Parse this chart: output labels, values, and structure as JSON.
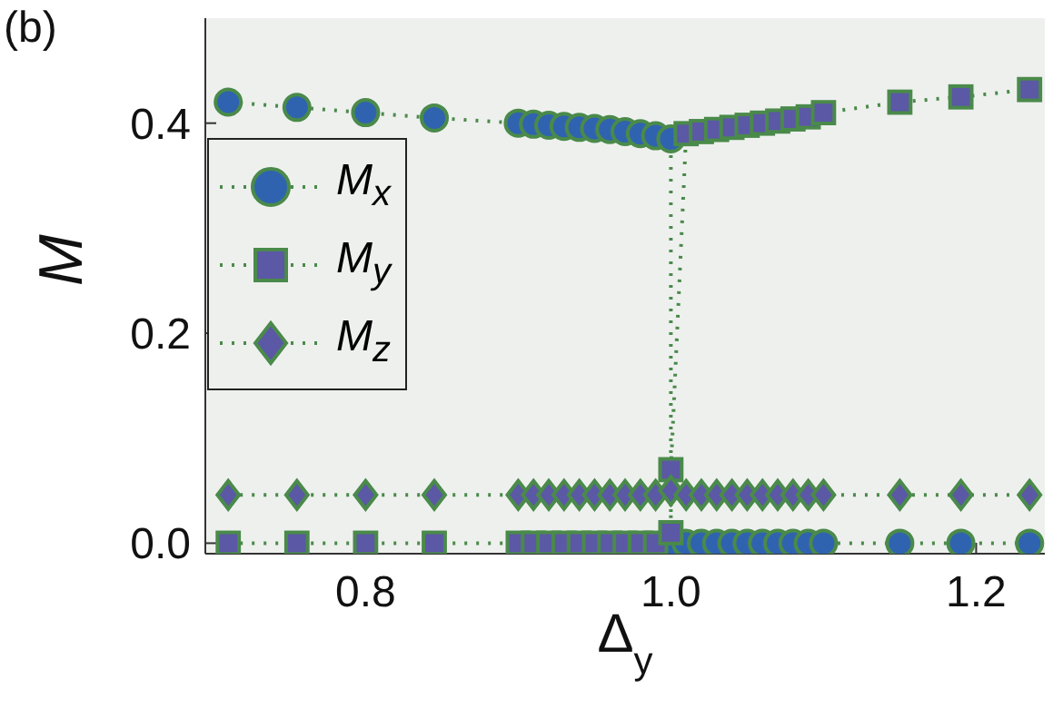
{
  "chart_data": {
    "type": "line",
    "xlabel": "Δ$_{y}$",
    "ylabel": "M",
    "annotations": [
      "(b)"
    ],
    "xlim": [
      0.695,
      1.245
    ],
    "ylim": [
      -0.01,
      0.5
    ],
    "xticks": [
      {
        "value": 0.8,
        "label": "0.8"
      },
      {
        "value": 1.0,
        "label": "1.0"
      },
      {
        "value": 1.2,
        "label": "1.2"
      }
    ],
    "yticks": [
      {
        "value": 0.0,
        "label": "0.0"
      },
      {
        "value": 0.2,
        "label": "0.2"
      },
      {
        "value": 0.4,
        "label": "0.4"
      }
    ],
    "grid": false,
    "legend": "top left",
    "line_style": "dotted",
    "series": [
      {
        "name": "M$_{x}$",
        "color": "#2f63b0",
        "marker": "circle",
        "x": [
          0.71,
          0.755,
          0.8,
          0.845,
          0.9,
          0.91,
          0.92,
          0.93,
          0.94,
          0.95,
          0.96,
          0.97,
          0.98,
          0.99,
          1.0,
          1.0,
          1.01,
          1.02,
          1.03,
          1.04,
          1.05,
          1.06,
          1.07,
          1.08,
          1.09,
          1.1,
          1.15,
          1.19,
          1.235
        ],
        "values": [
          0.42,
          0.415,
          0.41,
          0.405,
          0.4,
          0.399,
          0.398,
          0.397,
          0.396,
          0.395,
          0.394,
          0.392,
          0.39,
          0.388,
          0.385,
          0.0,
          0.0,
          0.0,
          0.0,
          0.0,
          0.0,
          0.0,
          0.0,
          0.0,
          0.0,
          0.0,
          0.0,
          0.0,
          0.0
        ]
      },
      {
        "name": "M$_{y}$",
        "color": "#5b58a6",
        "marker": "square",
        "x": [
          0.71,
          0.755,
          0.8,
          0.845,
          0.9,
          0.91,
          0.92,
          0.93,
          0.94,
          0.95,
          0.96,
          0.97,
          0.98,
          0.99,
          1.0,
          1.0,
          1.01,
          1.02,
          1.03,
          1.04,
          1.05,
          1.06,
          1.07,
          1.08,
          1.09,
          1.1,
          1.15,
          1.19,
          1.235
        ],
        "values": [
          0.0,
          0.0,
          0.0,
          0.0,
          0.0,
          0.0,
          0.0,
          0.0,
          0.0,
          0.0,
          0.0,
          0.0,
          0.0,
          0.0,
          0.01,
          0.07,
          0.39,
          0.392,
          0.394,
          0.396,
          0.398,
          0.4,
          0.402,
          0.404,
          0.406,
          0.41,
          0.42,
          0.425,
          0.432
        ]
      },
      {
        "name": "M$_{z}$",
        "color": "#5b58a6",
        "marker": "diamond",
        "x": [
          0.71,
          0.755,
          0.8,
          0.845,
          0.9,
          0.91,
          0.92,
          0.93,
          0.94,
          0.95,
          0.96,
          0.97,
          0.98,
          0.99,
          1.0,
          1.01,
          1.02,
          1.03,
          1.04,
          1.05,
          1.06,
          1.07,
          1.08,
          1.09,
          1.1,
          1.15,
          1.19,
          1.235
        ],
        "values": [
          0.046,
          0.046,
          0.046,
          0.046,
          0.046,
          0.046,
          0.046,
          0.046,
          0.046,
          0.046,
          0.046,
          0.046,
          0.046,
          0.046,
          0.05,
          0.046,
          0.046,
          0.046,
          0.046,
          0.046,
          0.046,
          0.046,
          0.046,
          0.046,
          0.046,
          0.046,
          0.046,
          0.046
        ]
      }
    ]
  }
}
